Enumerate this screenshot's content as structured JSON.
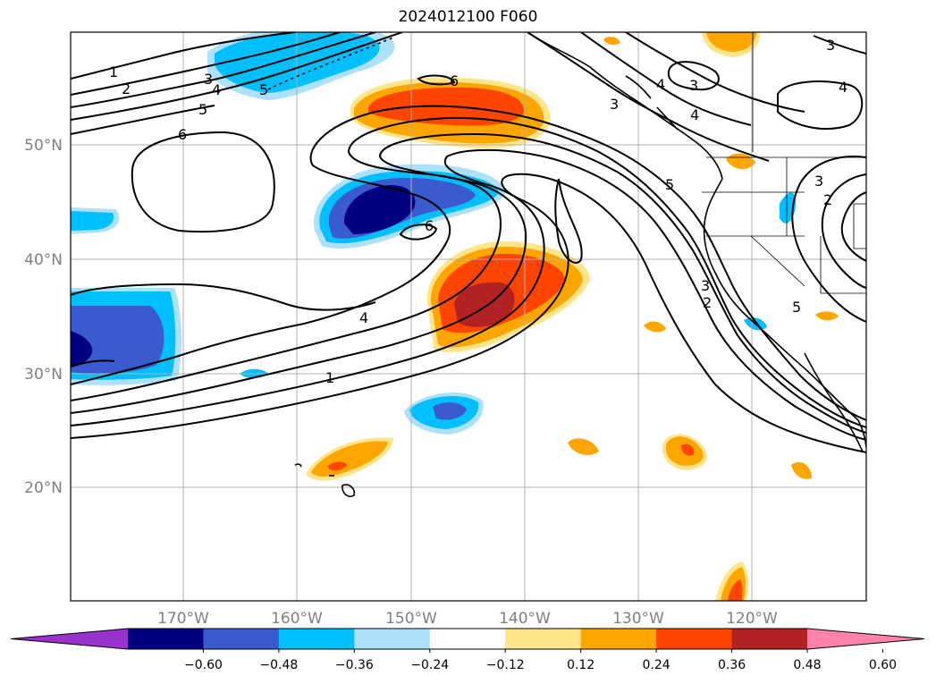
{
  "title": "2024012100 F060",
  "map": {
    "lat_labels": [
      "50°N",
      "40°N",
      "30°N",
      "20°N"
    ],
    "lon_labels": [
      "170°W",
      "160°W",
      "150°W",
      "140°W",
      "130°W",
      "120°W"
    ],
    "contour_labels": [
      "1",
      "2",
      "3",
      "4",
      "5",
      "6",
      "6",
      "6",
      "4",
      "1",
      "5",
      "3",
      "4",
      "3",
      "4",
      "3",
      "2",
      "3",
      "2",
      "5",
      "5",
      "3",
      "4"
    ]
  },
  "colorbar": {
    "tick_labels": [
      "−0.60",
      "−0.48",
      "−0.36",
      "−0.24",
      "−0.12",
      "0.12",
      "0.24",
      "0.36",
      "0.48",
      "0.60"
    ],
    "colors": [
      "#9932cc",
      "#000080",
      "#3a5bcd",
      "#00bfff",
      "#ade0fa",
      "#ffffff",
      "#ffe58a",
      "#ffa500",
      "#ff4500",
      "#b22222",
      "#ff82ab"
    ]
  }
}
